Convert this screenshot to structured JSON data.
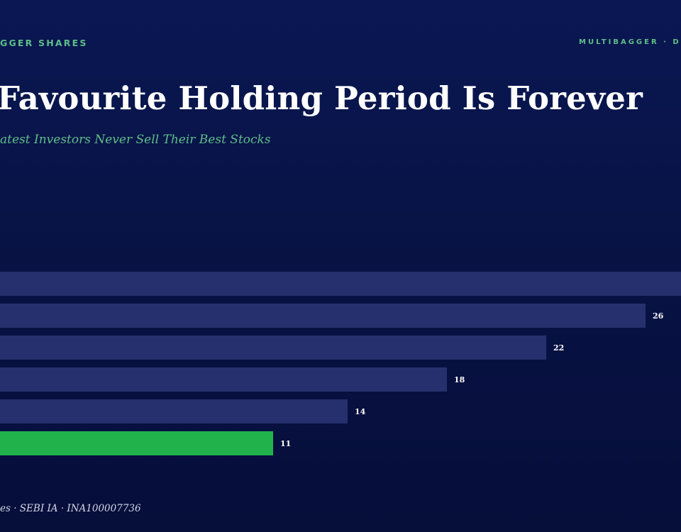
{
  "header": {
    "brand_left": "GGER SHARES",
    "brand_right": "MULTIBAGGER · D"
  },
  "title": "Favourite Holding Period Is Forever",
  "subtitle": "atest Investors Never Sell Their Best Stocks",
  "footer": "es · SEBI IA · INA100007736",
  "colors": {
    "bar": "#27306e",
    "highlight": "#22b24c",
    "label": "#ffffff",
    "brand_accent": "#5fbf87"
  },
  "chart_data": {
    "type": "bar",
    "orientation": "horizontal",
    "values": [
      30,
      26,
      22,
      18,
      14,
      11
    ],
    "data_labels": [
      "",
      "26",
      "22",
      "18",
      "14",
      "11"
    ],
    "highlight_index": 5,
    "grid": false,
    "legend": "none"
  }
}
